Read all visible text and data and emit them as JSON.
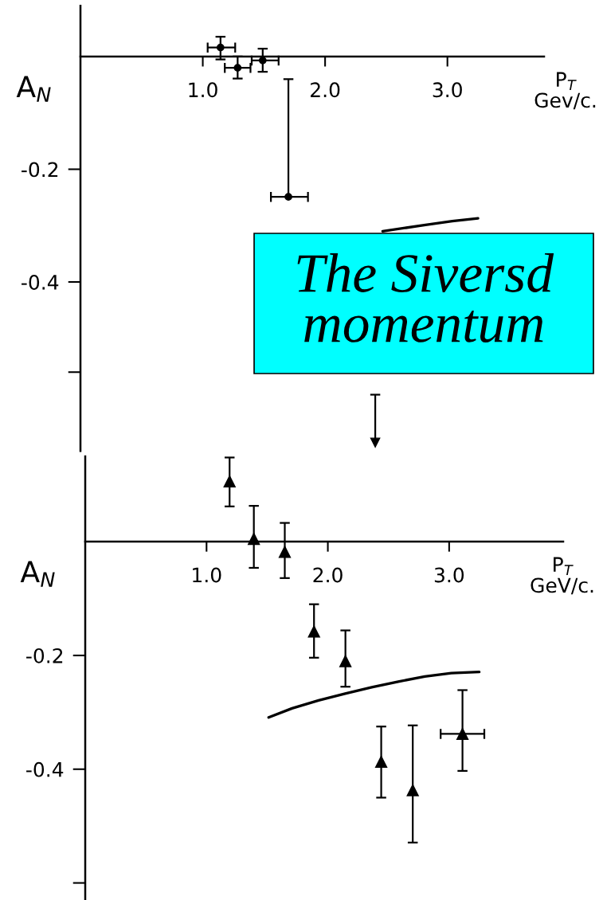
{
  "chart_data": [
    {
      "type": "scatter",
      "xlabel": "P$_{T}$\nGev/c.",
      "ylabel": "A$_{N}$",
      "xlim": [
        0,
        3.79
      ],
      "ylim": [
        -0.7,
        0.09
      ],
      "xticks": [
        {
          "value": 1,
          "label": "1.0"
        },
        {
          "value": 2,
          "label": "2.0"
        },
        {
          "value": 3,
          "label": "3.0"
        }
      ],
      "yticks": [
        {
          "value": -0.56,
          "label": null
        },
        {
          "value": -0.4,
          "label": "-0.4"
        },
        {
          "value": -0.2,
          "label": "-0.2"
        }
      ],
      "annotations": [
        "The Siversd\nmomentum"
      ],
      "series": [
        {
          "marker": "circle",
          "color": "#000000",
          "x": [
            1.145,
            1.285,
            1.49,
            1.7
          ],
          "values": [
            0.016,
            -0.02,
            -0.007,
            -0.249
          ],
          "errors": [
            [
              -0.005,
              0.035
            ],
            [
              -0.039,
              0.0
            ],
            [
              -0.027,
              0.014
            ],
            [
              -0.249,
              -0.04
            ]
          ],
          "xerrors": [
            [
              1.04,
              1.265
            ],
            [
              1.18,
              1.39
            ],
            [
              1.4,
              1.62
            ],
            [
              1.557,
              1.86
            ]
          ]
        },
        {
          "marker": "triangle",
          "color": "#000000",
          "x": [
            2.41
          ],
          "values": [
            -0.685
          ],
          "errors": [
            [
              -0.685,
              -0.6
            ]
          ]
        },
        {
          "type": "line",
          "color": "#000000",
          "x": [
            2.47,
            2.81,
            3.04,
            3.25
          ],
          "values": [
            -0.31,
            -0.299,
            -0.292,
            -0.287
          ]
        }
      ]
    },
    {
      "type": "scatter",
      "xlabel": "P$_{T}$\nGeV/c.",
      "ylabel": "A$_{N}$",
      "xlim": [
        0,
        3.94
      ],
      "ylim": [
        -0.63,
        0.15
      ],
      "xticks": [
        {
          "value": 1,
          "label": "1.0"
        },
        {
          "value": 2,
          "label": "2.0"
        },
        {
          "value": 3,
          "label": "3.0"
        }
      ],
      "yticks": [
        {
          "value": -0.6,
          "label": null
        },
        {
          "value": -0.4,
          "label": "-0.4"
        },
        {
          "value": -0.2,
          "label": "-0.2"
        }
      ],
      "series": [
        {
          "marker": "triangle",
          "color": "#000000",
          "x": [
            1.19,
            1.39,
            1.645,
            1.886,
            2.145,
            2.44,
            2.7,
            3.11
          ],
          "values": [
            0.106,
            0.005,
            -0.018,
            -0.158,
            -0.21,
            -0.387,
            -0.437,
            -0.338
          ],
          "errors": [
            [
              0.062,
              0.148
            ],
            [
              -0.046,
              0.063
            ],
            [
              -0.064,
              0.033
            ],
            [
              -0.204,
              -0.11
            ],
            [
              -0.255,
              -0.156
            ],
            [
              -0.45,
              -0.325
            ],
            [
              -0.529,
              -0.323
            ],
            [
              -0.403,
              -0.261
            ]
          ],
          "xerrors": [
            null,
            null,
            null,
            null,
            null,
            null,
            null,
            [
              2.93,
              3.29
            ]
          ]
        },
        {
          "type": "line",
          "color": "#000000",
          "x": [
            1.512,
            1.705,
            1.924,
            2.143,
            2.362,
            2.58,
            2.799,
            3.018,
            3.248
          ],
          "values": [
            -0.309,
            -0.293,
            -0.279,
            -0.267,
            -0.256,
            -0.246,
            -0.237,
            -0.231,
            -0.229
          ]
        }
      ]
    }
  ]
}
